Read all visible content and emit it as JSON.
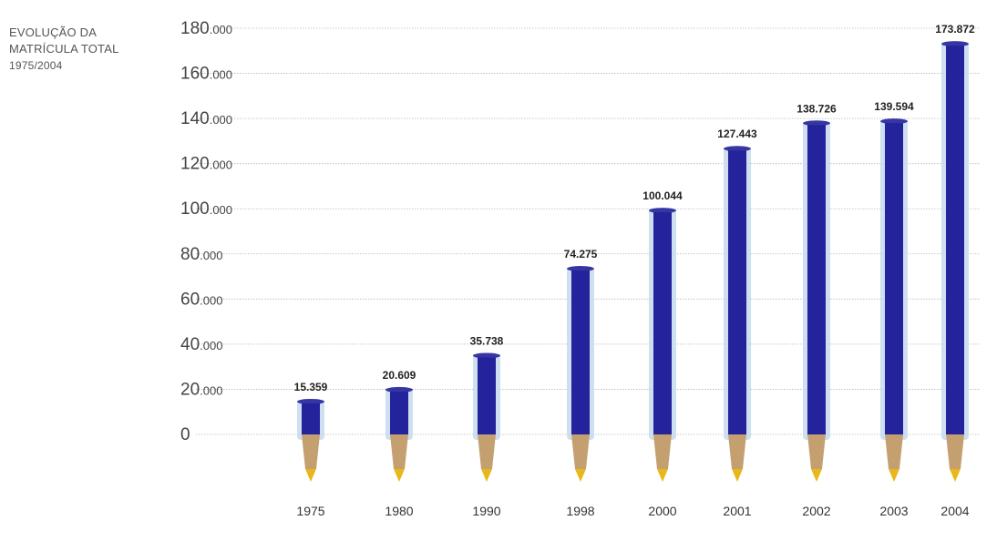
{
  "chart_data": {
    "type": "bar",
    "title": {
      "line1": "EVOLUÇÃO DA",
      "line2": "MATRÍCULA TOTAL",
      "line3": "1975/2004"
    },
    "categories": [
      "1975",
      "1980",
      "1990",
      "1998",
      "2000",
      "2001",
      "2002",
      "2003",
      "2004"
    ],
    "values": [
      15359,
      20609,
      35738,
      74275,
      100044,
      127443,
      138726,
      139594,
      173872
    ],
    "value_labels": [
      "15.359",
      "20.609",
      "35.738",
      "74.275",
      "100.044",
      "127.443",
      "138.726",
      "139.594",
      "173.872"
    ],
    "y_ticks": [
      {
        "value": 0,
        "label": "0"
      },
      {
        "value": 20000,
        "label": "20.000"
      },
      {
        "value": 40000,
        "label": "40.000"
      },
      {
        "value": 60000,
        "label": "60.000"
      },
      {
        "value": 80000,
        "label": "80.000"
      },
      {
        "value": 100000,
        "label": "100.000"
      },
      {
        "value": 120000,
        "label": "120.000"
      },
      {
        "value": 140000,
        "label": "140.000"
      },
      {
        "value": 160000,
        "label": "160.000"
      },
      {
        "value": 180000,
        "label": "180.000"
      }
    ],
    "ylim": [
      0,
      180000
    ],
    "grid": true,
    "colors": {
      "barrel": "#c5d9ef",
      "ink": "#25239b",
      "tip_wood": "#c4a070",
      "tip_point": "#e8b81a",
      "grid": "#b8b8b8"
    }
  }
}
